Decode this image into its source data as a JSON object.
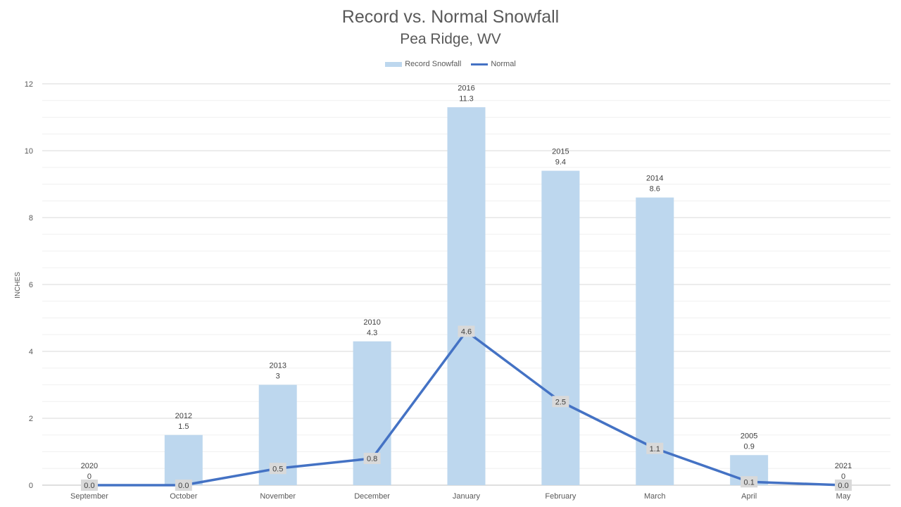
{
  "chart_data": {
    "type": "bar",
    "title": "Record vs. Normal Snowfall",
    "subtitle": "Pea Ridge, WV",
    "ylabel": "INCHES",
    "xlabel": "",
    "ylim": [
      0,
      12
    ],
    "y_major_ticks": [
      0,
      2,
      4,
      6,
      8,
      10,
      12
    ],
    "grid": true,
    "legend_position": "top",
    "categories": [
      "September",
      "October",
      "November",
      "December",
      "January",
      "February",
      "March",
      "April",
      "May"
    ],
    "series": [
      {
        "name": "Record Snowfall",
        "type": "bar",
        "color": "#bdd7ee",
        "values": [
          0,
          1.5,
          3,
          4.3,
          11.3,
          9.4,
          8.6,
          0.9,
          0
        ],
        "value_labels": [
          "0",
          "1.5",
          "3",
          "4.3",
          "11.3",
          "9.4",
          "8.6",
          "0.9",
          "0"
        ],
        "year_labels": [
          "2020",
          "2012",
          "2013",
          "2010",
          "2016",
          "2015",
          "2014",
          "2005",
          "2021"
        ]
      },
      {
        "name": "Normal",
        "type": "line",
        "color": "#4472c4",
        "values": [
          0.0,
          0.0,
          0.5,
          0.8,
          4.6,
          2.5,
          1.1,
          0.1,
          0.0
        ],
        "value_labels": [
          "0.0",
          "0.0",
          "0.5",
          "0.8",
          "4.6",
          "2.5",
          "1.1",
          "0.1",
          "0.0"
        ]
      }
    ]
  }
}
